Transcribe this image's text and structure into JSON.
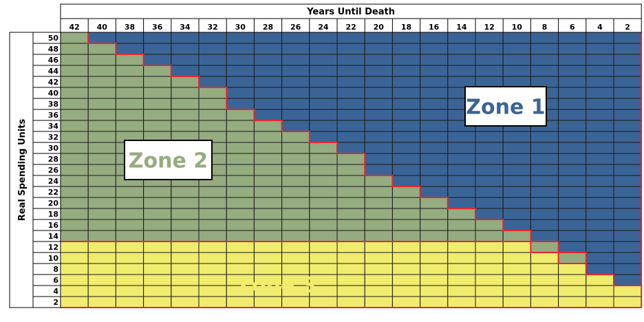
{
  "chart_data": {
    "type": "heatmap",
    "title": "",
    "xlabel": "Years Until Death",
    "ylabel": "Real Spending Units",
    "x_ticks": [
      42,
      40,
      38,
      36,
      34,
      32,
      30,
      28,
      26,
      24,
      22,
      20,
      18,
      16,
      14,
      12,
      10,
      8,
      6,
      4,
      2
    ],
    "y_ticks": [
      50,
      48,
      46,
      44,
      42,
      40,
      38,
      36,
      34,
      32,
      30,
      28,
      26,
      24,
      22,
      20,
      18,
      16,
      14,
      12,
      10,
      8,
      6,
      4,
      2
    ],
    "zone_boundary": {
      "columns": [
        42,
        40,
        38,
        36,
        34,
        32,
        30,
        28,
        26,
        24,
        22,
        20,
        18,
        16,
        14,
        12,
        10,
        8,
        6,
        4,
        2
      ],
      "zone1_starts_above_spending": [
        50,
        48,
        46,
        44,
        42,
        40,
        36,
        34,
        32,
        30,
        28,
        24,
        22,
        20,
        18,
        16,
        14,
        12,
        10,
        6,
        4
      ],
      "zone3_max_spending": 12,
      "zone3_boundary_by_column": [
        12,
        12,
        12,
        12,
        12,
        12,
        12,
        12,
        12,
        12,
        12,
        12,
        12,
        12,
        12,
        12,
        12,
        10,
        8,
        6,
        4
      ]
    },
    "zones": [
      {
        "name": "Zone 1",
        "color": "#3a6496"
      },
      {
        "name": "Zone 2",
        "color": "#95ab80"
      },
      {
        "name": "Zone 3",
        "color": "#f0ec6e"
      }
    ],
    "boundary_color": "#e8262d",
    "grid": true
  }
}
